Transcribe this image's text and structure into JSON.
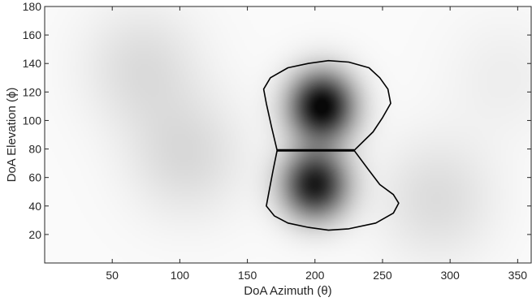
{
  "chart_data": {
    "type": "heatmap",
    "xlabel": "DoA Azimuth (θ)",
    "ylabel": "DoA Elevation (ϕ)",
    "xlim": [
      0,
      360
    ],
    "ylim": [
      0,
      180
    ],
    "x_ticks": [
      50,
      100,
      150,
      200,
      250,
      300,
      350
    ],
    "y_ticks": [
      20,
      40,
      60,
      80,
      100,
      120,
      140,
      160,
      180
    ],
    "colormap": "grayscale (white = low, black = high)",
    "grid": false,
    "peaks": [
      {
        "azimuth": 205,
        "elevation": 110,
        "intensity": 1.0
      },
      {
        "azimuth": 200,
        "elevation": 55,
        "intensity": 0.9
      }
    ],
    "weak_lobes": [
      {
        "azimuth": 72,
        "elevation": 137,
        "intensity": 0.12
      },
      {
        "azimuth": 105,
        "elevation": 75,
        "intensity": 0.13
      },
      {
        "azimuth": 290,
        "elevation": 45,
        "intensity": 0.12
      },
      {
        "azimuth": 340,
        "elevation": 130,
        "intensity": 0.05
      }
    ],
    "regions": [
      {
        "label": "",
        "boundary": [
          [
            172,
            79
          ],
          [
            168,
            95
          ],
          [
            164,
            112
          ],
          [
            162,
            122
          ],
          [
            167,
            130
          ],
          [
            180,
            137
          ],
          [
            195,
            140
          ],
          [
            210,
            142
          ],
          [
            225,
            141
          ],
          [
            240,
            137
          ],
          [
            248,
            130
          ],
          [
            254,
            122
          ],
          [
            256,
            112
          ],
          [
            250,
            102
          ],
          [
            243,
            92
          ],
          [
            229,
            79
          ]
        ]
      },
      {
        "label": "",
        "boundary": [
          [
            172,
            79
          ],
          [
            169,
            65
          ],
          [
            166,
            50
          ],
          [
            164,
            40
          ],
          [
            170,
            33
          ],
          [
            180,
            28
          ],
          [
            195,
            25
          ],
          [
            210,
            23
          ],
          [
            225,
            24
          ],
          [
            245,
            28
          ],
          [
            258,
            35
          ],
          [
            262,
            42
          ],
          [
            258,
            48
          ],
          [
            248,
            55
          ],
          [
            240,
            65
          ],
          [
            229,
            79
          ]
        ]
      }
    ],
    "divider_line": {
      "from": [
        172,
        79
      ],
      "to": [
        229,
        79
      ]
    }
  },
  "colors": {
    "axis": "#262626",
    "background": "#ffffff",
    "region_outline": "#000000"
  }
}
